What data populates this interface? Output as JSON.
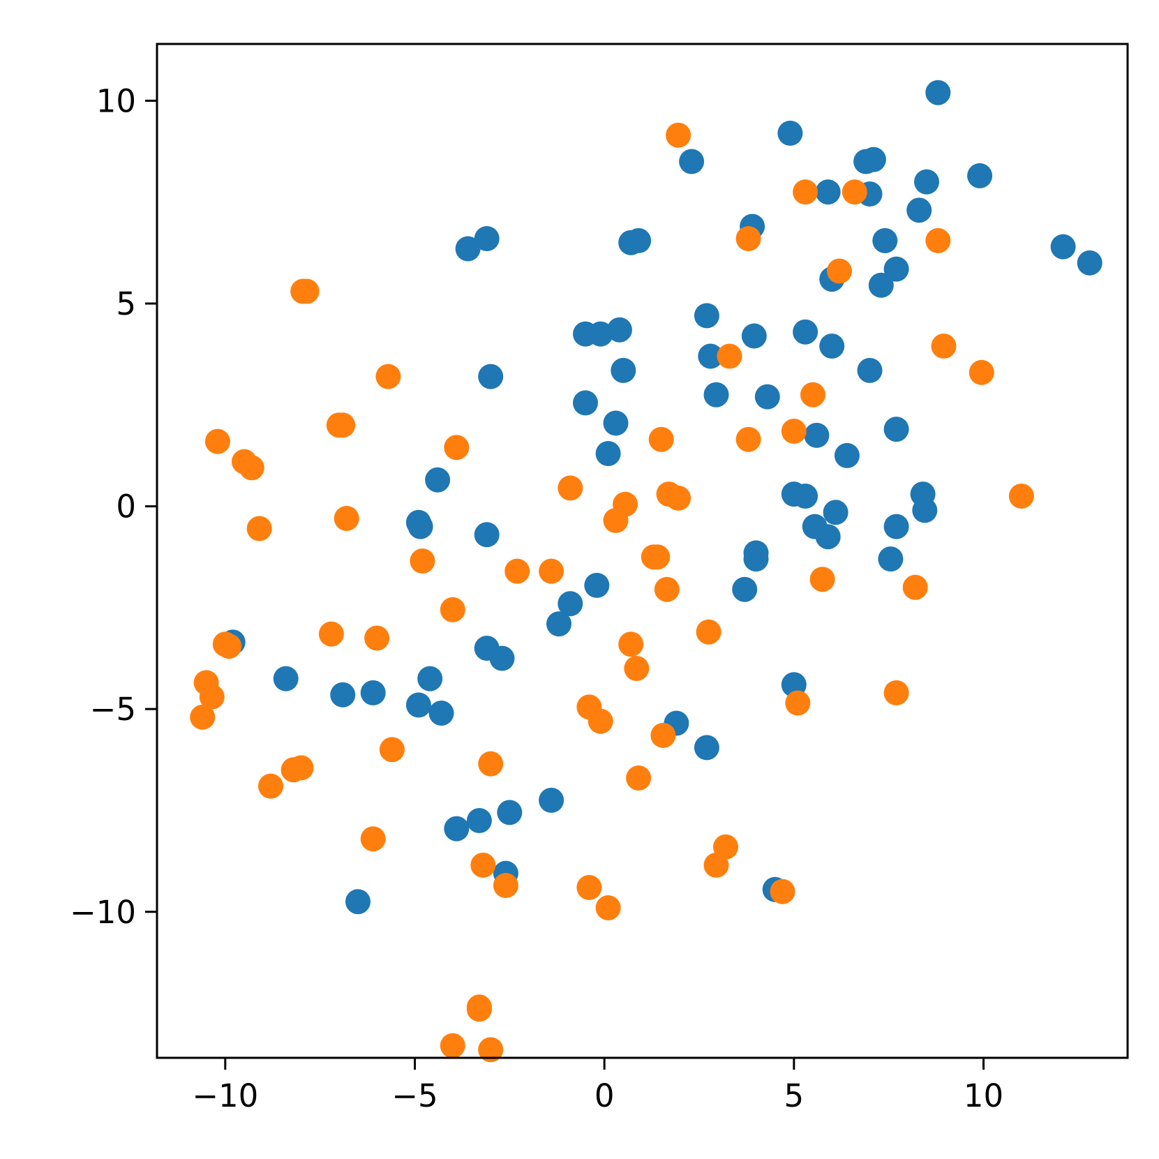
{
  "chart_data": {
    "type": "scatter",
    "title": "",
    "xlabel": "",
    "ylabel": "",
    "xlim": [
      -11.8,
      13.8
    ],
    "ylim": [
      -13.6,
      11.4
    ],
    "xticks": [
      -10,
      -5,
      0,
      5,
      10
    ],
    "yticks": [
      -10,
      -5,
      0,
      5,
      10
    ],
    "xtick_labels": [
      "−10",
      "−5",
      "0",
      "5",
      "10"
    ],
    "ytick_labels": [
      "−10",
      "−5",
      "0",
      "5",
      "10"
    ],
    "grid": false,
    "legend": "none",
    "series": [
      {
        "color": "#1f77b4",
        "points": [
          [
            8.8,
            10.2
          ],
          [
            4.9,
            9.2
          ],
          [
            2.3,
            8.5
          ],
          [
            6.9,
            8.5
          ],
          [
            7.1,
            8.55
          ],
          [
            8.5,
            8.0
          ],
          [
            9.9,
            8.15
          ],
          [
            5.9,
            7.75
          ],
          [
            7.0,
            7.7
          ],
          [
            8.3,
            7.3
          ],
          [
            3.9,
            6.9
          ],
          [
            7.4,
            6.55
          ],
          [
            12.1,
            6.4
          ],
          [
            12.8,
            6.0
          ],
          [
            -3.6,
            6.35
          ],
          [
            -3.1,
            6.6
          ],
          [
            0.7,
            6.5
          ],
          [
            0.9,
            6.55
          ],
          [
            6.0,
            5.6
          ],
          [
            7.3,
            5.45
          ],
          [
            7.7,
            5.85
          ],
          [
            2.7,
            4.7
          ],
          [
            -0.5,
            4.25
          ],
          [
            -0.1,
            4.25
          ],
          [
            0.4,
            4.35
          ],
          [
            3.95,
            4.2
          ],
          [
            5.3,
            4.3
          ],
          [
            6.0,
            3.95
          ],
          [
            2.8,
            3.7
          ],
          [
            0.5,
            3.35
          ],
          [
            7.0,
            3.35
          ],
          [
            -3.0,
            3.2
          ],
          [
            2.95,
            2.75
          ],
          [
            4.3,
            2.7
          ],
          [
            -0.5,
            2.55
          ],
          [
            0.3,
            2.05
          ],
          [
            5.6,
            1.75
          ],
          [
            7.7,
            1.9
          ],
          [
            0.1,
            1.3
          ],
          [
            6.4,
            1.25
          ],
          [
            -4.4,
            0.65
          ],
          [
            5.0,
            0.3
          ],
          [
            5.3,
            0.25
          ],
          [
            8.4,
            0.3
          ],
          [
            8.45,
            -0.1
          ],
          [
            6.1,
            -0.15
          ],
          [
            -4.9,
            -0.4
          ],
          [
            -4.85,
            -0.5
          ],
          [
            5.55,
            -0.5
          ],
          [
            5.9,
            -0.75
          ],
          [
            7.7,
            -0.5
          ],
          [
            -3.1,
            -0.7
          ],
          [
            4.0,
            -1.15
          ],
          [
            4.0,
            -1.3
          ],
          [
            7.55,
            -1.3
          ],
          [
            -0.2,
            -1.95
          ],
          [
            3.7,
            -2.05
          ],
          [
            -0.9,
            -2.4
          ],
          [
            -1.2,
            -2.9
          ],
          [
            -9.8,
            -3.35
          ],
          [
            -3.1,
            -3.5
          ],
          [
            -2.7,
            -3.75
          ],
          [
            -8.4,
            -4.25
          ],
          [
            -4.6,
            -4.25
          ],
          [
            -6.9,
            -4.65
          ],
          [
            -6.1,
            -4.6
          ],
          [
            -4.9,
            -4.9
          ],
          [
            -4.3,
            -5.1
          ],
          [
            5.0,
            -4.4
          ],
          [
            1.9,
            -5.35
          ],
          [
            2.7,
            -5.95
          ],
          [
            -1.4,
            -7.25
          ],
          [
            -2.5,
            -7.55
          ],
          [
            -3.3,
            -7.75
          ],
          [
            -3.9,
            -7.95
          ],
          [
            -2.6,
            -9.05
          ],
          [
            4.5,
            -9.45
          ],
          [
            -6.5,
            -9.75
          ]
        ]
      },
      {
        "color": "#ff7f0e",
        "points": [
          [
            1.95,
            9.15
          ],
          [
            5.3,
            7.75
          ],
          [
            6.6,
            7.75
          ],
          [
            3.8,
            6.6
          ],
          [
            8.8,
            6.55
          ],
          [
            6.2,
            5.8
          ],
          [
            -7.95,
            5.3
          ],
          [
            -7.85,
            5.3
          ],
          [
            3.3,
            3.7
          ],
          [
            8.95,
            3.95
          ],
          [
            9.95,
            3.3
          ],
          [
            -5.7,
            3.2
          ],
          [
            5.5,
            2.75
          ],
          [
            -7.0,
            2.0
          ],
          [
            -6.9,
            2.0
          ],
          [
            -10.2,
            1.6
          ],
          [
            1.5,
            1.65
          ],
          [
            3.8,
            1.65
          ],
          [
            5.0,
            1.85
          ],
          [
            -3.9,
            1.45
          ],
          [
            -9.5,
            1.1
          ],
          [
            -9.3,
            0.95
          ],
          [
            -0.9,
            0.45
          ],
          [
            1.7,
            0.3
          ],
          [
            1.95,
            0.2
          ],
          [
            11.0,
            0.25
          ],
          [
            0.55,
            0.05
          ],
          [
            -6.8,
            -0.3
          ],
          [
            0.3,
            -0.35
          ],
          [
            -9.1,
            -0.55
          ],
          [
            1.3,
            -1.25
          ],
          [
            1.4,
            -1.25
          ],
          [
            -4.8,
            -1.35
          ],
          [
            -2.3,
            -1.6
          ],
          [
            -1.4,
            -1.6
          ],
          [
            5.75,
            -1.8
          ],
          [
            1.65,
            -2.05
          ],
          [
            8.2,
            -2.0
          ],
          [
            -4.0,
            -2.55
          ],
          [
            -7.2,
            -3.15
          ],
          [
            -6.0,
            -3.25
          ],
          [
            2.75,
            -3.1
          ],
          [
            0.7,
            -3.4
          ],
          [
            -10.0,
            -3.4
          ],
          [
            -9.9,
            -3.45
          ],
          [
            0.85,
            -4.0
          ],
          [
            -10.5,
            -4.35
          ],
          [
            -10.35,
            -4.7
          ],
          [
            7.7,
            -4.6
          ],
          [
            5.1,
            -4.85
          ],
          [
            -0.4,
            -4.95
          ],
          [
            -0.1,
            -5.3
          ],
          [
            -10.6,
            -5.2
          ],
          [
            1.55,
            -5.65
          ],
          [
            -5.6,
            -6.0
          ],
          [
            -3.0,
            -6.35
          ],
          [
            -8.2,
            -6.5
          ],
          [
            -8.0,
            -6.45
          ],
          [
            -8.8,
            -6.9
          ],
          [
            0.9,
            -6.7
          ],
          [
            -6.1,
            -8.2
          ],
          [
            3.2,
            -8.4
          ],
          [
            2.95,
            -8.85
          ],
          [
            -3.2,
            -8.85
          ],
          [
            -2.6,
            -9.35
          ],
          [
            -0.4,
            -9.4
          ],
          [
            0.1,
            -9.9
          ],
          [
            4.7,
            -9.5
          ],
          [
            -3.3,
            -12.35
          ],
          [
            -3.3,
            -12.4
          ],
          [
            -4.0,
            -13.3
          ],
          [
            -3.0,
            -13.4
          ]
        ]
      }
    ]
  }
}
